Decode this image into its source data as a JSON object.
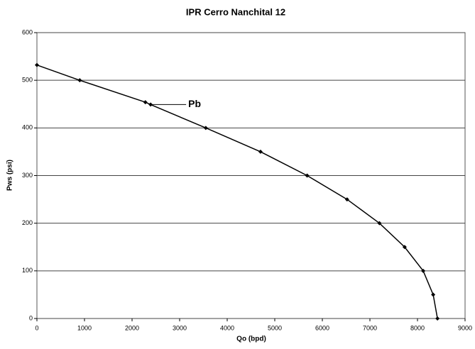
{
  "chart_data": {
    "type": "line",
    "title": "IPR Cerro Nanchital 12",
    "xlabel": "Qo (bpd)",
    "ylabel": "Pws (psi)",
    "annotation": "Pb",
    "x": [
      0,
      900,
      2280,
      2390,
      3550,
      4700,
      5680,
      6520,
      7200,
      7730,
      8120,
      8330,
      8420
    ],
    "series": [
      {
        "name": "IPR",
        "color": "#000000",
        "values": [
          532,
          500,
          454,
          449,
          400,
          350,
          300,
          250,
          200,
          150,
          100,
          50,
          0
        ]
      }
    ],
    "xlim": [
      0,
      9000
    ],
    "xticks": [
      0,
      1000,
      2000,
      3000,
      4000,
      5000,
      6000,
      7000,
      8000,
      9000
    ],
    "ylim": [
      0,
      600
    ],
    "yticks": [
      0,
      100,
      200,
      300,
      400,
      500,
      600
    ],
    "grid": true
  }
}
